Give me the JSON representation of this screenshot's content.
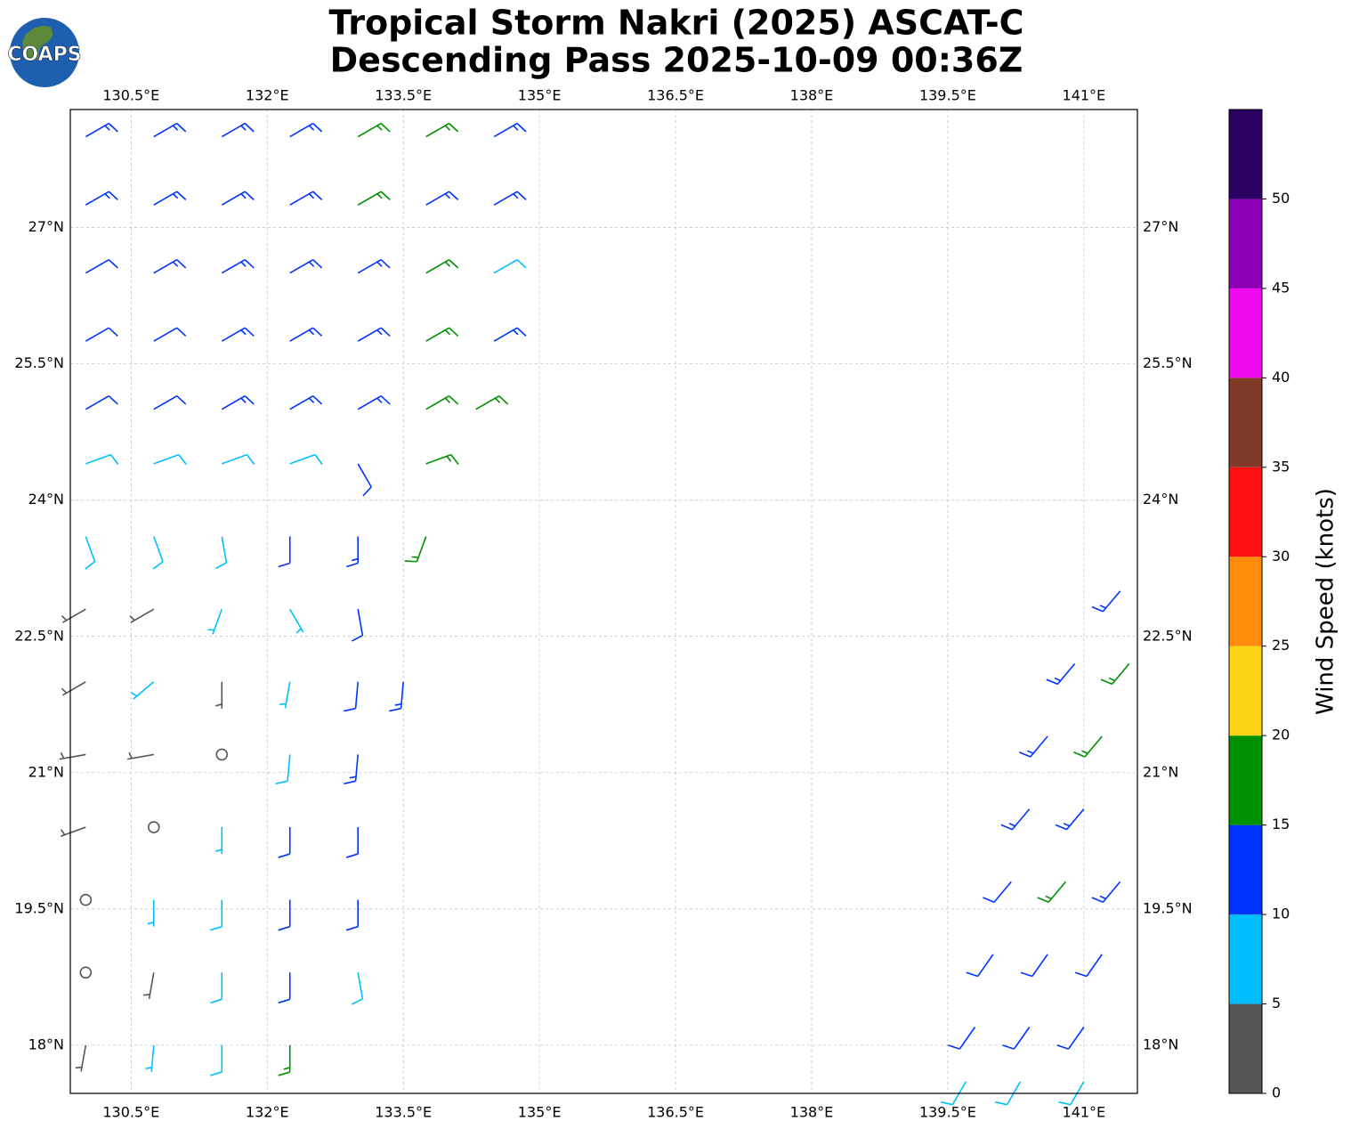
{
  "header": {
    "title_line1": "Tropical Storm Nakri (2025) ASCAT-C",
    "title_line2": "Descending Pass 2025-10-09 00:36Z",
    "logo_text": "COAPS"
  },
  "map": {
    "lon_range": [
      129.83,
      141.59
    ],
    "lat_range": [
      17.47,
      28.3
    ],
    "grid": true,
    "lon_ticks": [
      {
        "value": 130.5,
        "label": "130.5°E"
      },
      {
        "value": 132,
        "label": "132°E"
      },
      {
        "value": 133.5,
        "label": "133.5°E"
      },
      {
        "value": 135,
        "label": "135°E"
      },
      {
        "value": 136.5,
        "label": "136.5°E"
      },
      {
        "value": 138,
        "label": "138°E"
      },
      {
        "value": 139.5,
        "label": "139.5°E"
      },
      {
        "value": 141,
        "label": "141°E"
      }
    ],
    "lat_ticks": [
      {
        "value": 18,
        "label": "18°N"
      },
      {
        "value": 19.5,
        "label": "19.5°N"
      },
      {
        "value": 21,
        "label": "21°N"
      },
      {
        "value": 22.5,
        "label": "22.5°N"
      },
      {
        "value": 24,
        "label": "24°N"
      },
      {
        "value": 25.5,
        "label": "25.5°N"
      },
      {
        "value": 27,
        "label": "27°N"
      }
    ],
    "barbs": [
      {
        "lon": 130.0,
        "lat": 28.0,
        "speed": 13,
        "direction": 60
      },
      {
        "lon": 130.75,
        "lat": 28.0,
        "speed": 13,
        "direction": 60
      },
      {
        "lon": 131.5,
        "lat": 28.0,
        "speed": 13,
        "direction": 60
      },
      {
        "lon": 132.25,
        "lat": 28.0,
        "speed": 14,
        "direction": 60
      },
      {
        "lon": 133.0,
        "lat": 28.0,
        "speed": 16,
        "direction": 60
      },
      {
        "lon": 133.75,
        "lat": 28.0,
        "speed": 17,
        "direction": 60
      },
      {
        "lon": 134.5,
        "lat": 28.0,
        "speed": 13,
        "direction": 60
      },
      {
        "lon": 130.0,
        "lat": 27.25,
        "speed": 13,
        "direction": 60
      },
      {
        "lon": 130.75,
        "lat": 27.25,
        "speed": 13,
        "direction": 60
      },
      {
        "lon": 131.5,
        "lat": 27.25,
        "speed": 13,
        "direction": 60
      },
      {
        "lon": 132.25,
        "lat": 27.25,
        "speed": 14,
        "direction": 60
      },
      {
        "lon": 133.0,
        "lat": 27.25,
        "speed": 16,
        "direction": 60
      },
      {
        "lon": 133.75,
        "lat": 27.25,
        "speed": 14,
        "direction": 60
      },
      {
        "lon": 134.5,
        "lat": 27.25,
        "speed": 13,
        "direction": 60
      },
      {
        "lon": 130.0,
        "lat": 26.5,
        "speed": 12,
        "direction": 60
      },
      {
        "lon": 130.75,
        "lat": 26.5,
        "speed": 13,
        "direction": 60
      },
      {
        "lon": 131.5,
        "lat": 26.5,
        "speed": 13,
        "direction": 60
      },
      {
        "lon": 132.25,
        "lat": 26.5,
        "speed": 13,
        "direction": 60
      },
      {
        "lon": 133.0,
        "lat": 26.5,
        "speed": 13,
        "direction": 60
      },
      {
        "lon": 133.75,
        "lat": 26.5,
        "speed": 16,
        "direction": 60
      },
      {
        "lon": 134.5,
        "lat": 26.5,
        "speed": 9,
        "direction": 60
      },
      {
        "lon": 130.0,
        "lat": 25.75,
        "speed": 12,
        "direction": 60
      },
      {
        "lon": 130.75,
        "lat": 25.75,
        "speed": 12,
        "direction": 60
      },
      {
        "lon": 131.5,
        "lat": 25.75,
        "speed": 13,
        "direction": 60
      },
      {
        "lon": 132.25,
        "lat": 25.75,
        "speed": 13,
        "direction": 60
      },
      {
        "lon": 133.0,
        "lat": 25.75,
        "speed": 13,
        "direction": 60
      },
      {
        "lon": 133.75,
        "lat": 25.75,
        "speed": 16,
        "direction": 60
      },
      {
        "lon": 134.5,
        "lat": 25.75,
        "speed": 14,
        "direction": 60
      },
      {
        "lon": 130.0,
        "lat": 25.0,
        "speed": 12,
        "direction": 60
      },
      {
        "lon": 130.75,
        "lat": 25.0,
        "speed": 12,
        "direction": 60
      },
      {
        "lon": 131.5,
        "lat": 25.0,
        "speed": 13,
        "direction": 60
      },
      {
        "lon": 132.25,
        "lat": 25.0,
        "speed": 13,
        "direction": 60
      },
      {
        "lon": 133.0,
        "lat": 25.0,
        "speed": 13,
        "direction": 60
      },
      {
        "lon": 133.75,
        "lat": 25.0,
        "speed": 17,
        "direction": 60
      },
      {
        "lon": 134.3,
        "lat": 25.0,
        "speed": 16,
        "direction": 60
      },
      {
        "lon": 130.0,
        "lat": 24.4,
        "speed": 8,
        "direction": 70
      },
      {
        "lon": 130.75,
        "lat": 24.4,
        "speed": 8,
        "direction": 70
      },
      {
        "lon": 131.5,
        "lat": 24.4,
        "speed": 8,
        "direction": 70
      },
      {
        "lon": 132.25,
        "lat": 24.4,
        "speed": 8,
        "direction": 70
      },
      {
        "lon": 133.0,
        "lat": 24.4,
        "speed": 12,
        "direction": 150
      },
      {
        "lon": 133.75,
        "lat": 24.4,
        "speed": 16,
        "direction": 70
      },
      {
        "lon": 130.0,
        "lat": 23.6,
        "speed": 8,
        "direction": 160
      },
      {
        "lon": 130.75,
        "lat": 23.6,
        "speed": 8,
        "direction": 160
      },
      {
        "lon": 131.5,
        "lat": 23.6,
        "speed": 8,
        "direction": 170
      },
      {
        "lon": 132.25,
        "lat": 23.6,
        "speed": 12,
        "direction": 180
      },
      {
        "lon": 133.0,
        "lat": 23.6,
        "speed": 13,
        "direction": 180
      },
      {
        "lon": 133.75,
        "lat": 23.6,
        "speed": 16,
        "direction": 200
      },
      {
        "lon": 130.0,
        "lat": 22.8,
        "speed": 4,
        "direction": 240
      },
      {
        "lon": 130.75,
        "lat": 22.8,
        "speed": 4,
        "direction": 240
      },
      {
        "lon": 131.5,
        "lat": 22.8,
        "speed": 7,
        "direction": 200
      },
      {
        "lon": 132.25,
        "lat": 22.8,
        "speed": 7,
        "direction": 150
      },
      {
        "lon": 133.0,
        "lat": 22.8,
        "speed": 11,
        "direction": 170
      },
      {
        "lon": 130.0,
        "lat": 22.0,
        "speed": 3,
        "direction": 240
      },
      {
        "lon": 130.75,
        "lat": 22.0,
        "speed": 6,
        "direction": 230
      },
      {
        "lon": 131.5,
        "lat": 22.0,
        "speed": 4,
        "direction": 180
      },
      {
        "lon": 132.25,
        "lat": 22.0,
        "speed": 7,
        "direction": 190
      },
      {
        "lon": 133.0,
        "lat": 22.0,
        "speed": 12,
        "direction": 185
      },
      {
        "lon": 133.5,
        "lat": 22.0,
        "speed": 13,
        "direction": 185
      },
      {
        "lon": 130.0,
        "lat": 21.2,
        "speed": 3,
        "direction": 260
      },
      {
        "lon": 130.75,
        "lat": 21.2,
        "speed": 3,
        "direction": 260
      },
      {
        "lon": 131.5,
        "lat": 21.2,
        "speed": 0,
        "direction": 0
      },
      {
        "lon": 132.25,
        "lat": 21.2,
        "speed": 8,
        "direction": 185
      },
      {
        "lon": 133.0,
        "lat": 21.2,
        "speed": 13,
        "direction": 185
      },
      {
        "lon": 130.0,
        "lat": 20.4,
        "speed": 3,
        "direction": 250
      },
      {
        "lon": 130.75,
        "lat": 20.4,
        "speed": 2,
        "direction": 250
      },
      {
        "lon": 131.5,
        "lat": 20.4,
        "speed": 7,
        "direction": 180
      },
      {
        "lon": 132.25,
        "lat": 20.4,
        "speed": 12,
        "direction": 180
      },
      {
        "lon": 133.0,
        "lat": 20.4,
        "speed": 11,
        "direction": 180
      },
      {
        "lon": 130.0,
        "lat": 19.6,
        "speed": 0,
        "direction": 0
      },
      {
        "lon": 130.75,
        "lat": 19.6,
        "speed": 6,
        "direction": 180
      },
      {
        "lon": 131.5,
        "lat": 19.6,
        "speed": 8,
        "direction": 180
      },
      {
        "lon": 132.25,
        "lat": 19.6,
        "speed": 11,
        "direction": 180
      },
      {
        "lon": 133.0,
        "lat": 19.6,
        "speed": 10,
        "direction": 180
      },
      {
        "lon": 130.0,
        "lat": 18.8,
        "speed": 0,
        "direction": 0
      },
      {
        "lon": 130.75,
        "lat": 18.8,
        "speed": 4,
        "direction": 190
      },
      {
        "lon": 131.5,
        "lat": 18.8,
        "speed": 8,
        "direction": 180
      },
      {
        "lon": 132.25,
        "lat": 18.8,
        "speed": 11,
        "direction": 180
      },
      {
        "lon": 133.0,
        "lat": 18.8,
        "speed": 9,
        "direction": 170
      },
      {
        "lon": 130.0,
        "lat": 18.0,
        "speed": 3,
        "direction": 190
      },
      {
        "lon": 130.75,
        "lat": 18.0,
        "speed": 6,
        "direction": 185
      },
      {
        "lon": 131.5,
        "lat": 18.0,
        "speed": 8,
        "direction": 180
      },
      {
        "lon": 132.25,
        "lat": 18.0,
        "speed": 16,
        "direction": 180
      },
      {
        "lon": 141.4,
        "lat": 23.0,
        "speed": 13,
        "direction": 220
      },
      {
        "lon": 140.9,
        "lat": 22.2,
        "speed": 13,
        "direction": 220
      },
      {
        "lon": 141.5,
        "lat": 22.2,
        "speed": 16,
        "direction": 220
      },
      {
        "lon": 140.6,
        "lat": 21.4,
        "speed": 13,
        "direction": 220
      },
      {
        "lon": 141.2,
        "lat": 21.4,
        "speed": 17,
        "direction": 220
      },
      {
        "lon": 140.4,
        "lat": 20.6,
        "speed": 13,
        "direction": 220
      },
      {
        "lon": 141.0,
        "lat": 20.6,
        "speed": 13,
        "direction": 220
      },
      {
        "lon": 140.2,
        "lat": 19.8,
        "speed": 12,
        "direction": 220
      },
      {
        "lon": 140.8,
        "lat": 19.8,
        "speed": 16,
        "direction": 220
      },
      {
        "lon": 141.4,
        "lat": 19.8,
        "speed": 13,
        "direction": 220
      },
      {
        "lon": 140.0,
        "lat": 19.0,
        "speed": 12,
        "direction": 215
      },
      {
        "lon": 140.6,
        "lat": 19.0,
        "speed": 12,
        "direction": 215
      },
      {
        "lon": 141.2,
        "lat": 19.0,
        "speed": 12,
        "direction": 215
      },
      {
        "lon": 139.8,
        "lat": 18.2,
        "speed": 11,
        "direction": 215
      },
      {
        "lon": 140.4,
        "lat": 18.2,
        "speed": 12,
        "direction": 215
      },
      {
        "lon": 141.0,
        "lat": 18.2,
        "speed": 12,
        "direction": 215
      },
      {
        "lon": 139.7,
        "lat": 17.6,
        "speed": 8,
        "direction": 210
      },
      {
        "lon": 140.3,
        "lat": 17.6,
        "speed": 8,
        "direction": 210
      },
      {
        "lon": 141.0,
        "lat": 17.6,
        "speed": 8,
        "direction": 210
      }
    ]
  },
  "colorbar": {
    "label": "Wind Speed (knots)",
    "bounds": [
      0,
      5,
      10,
      15,
      20,
      25,
      30,
      35,
      40,
      45,
      50,
      55
    ],
    "colors": [
      "#555555",
      "#00bfff",
      "#0033ff",
      "#009000",
      "#fcd416",
      "#ff8c0a",
      "#ff1010",
      "#7f3a28",
      "#ee0aee",
      "#8a00b4",
      "#2a0060"
    ],
    "ticks": [
      0,
      5,
      10,
      15,
      20,
      25,
      30,
      35,
      40,
      45,
      50
    ]
  }
}
